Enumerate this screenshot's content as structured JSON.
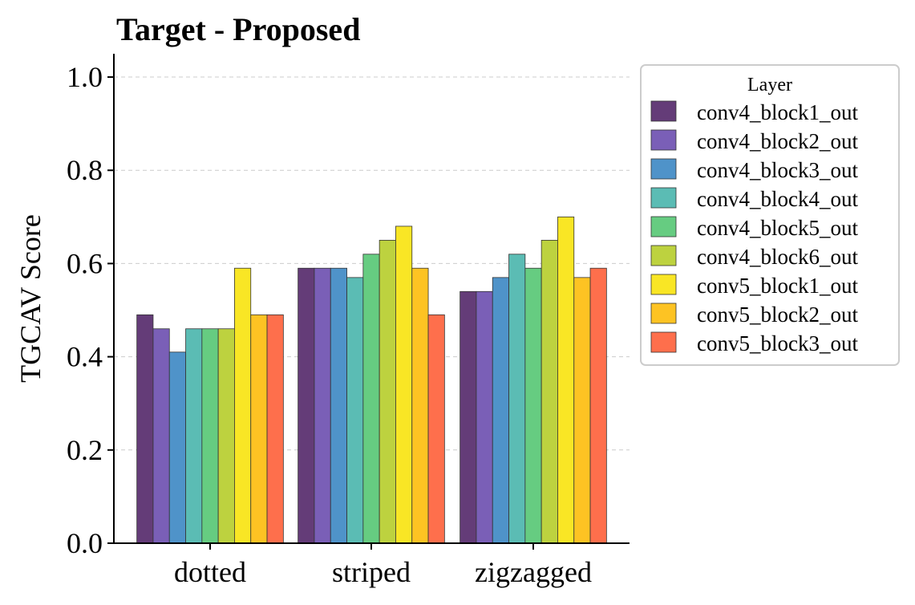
{
  "chart_data": {
    "type": "bar",
    "title": "Target - Proposed",
    "xlabel": "",
    "ylabel": "TGCAV Score",
    "ylim": [
      0,
      1.05
    ],
    "yticks": [
      0.0,
      0.2,
      0.4,
      0.6,
      0.8,
      1.0
    ],
    "ytick_labels": [
      "0.0",
      "0.2",
      "0.4",
      "0.6",
      "0.8",
      "1.0"
    ],
    "grid": true,
    "categories": [
      "dotted",
      "striped",
      "zigzagged"
    ],
    "legend": {
      "title": "Layer",
      "placement": "outside-right-top"
    },
    "series": [
      {
        "name": "conv4_block1_out",
        "color": "#643c78",
        "values": [
          0.49,
          0.59,
          0.54
        ]
      },
      {
        "name": "conv4_block2_out",
        "color": "#7a5fb7",
        "values": [
          0.46,
          0.59,
          0.54
        ]
      },
      {
        "name": "conv4_block3_out",
        "color": "#4f93c9",
        "values": [
          0.41,
          0.59,
          0.57
        ]
      },
      {
        "name": "conv4_block4_out",
        "color": "#5bbcb4",
        "values": [
          0.46,
          0.57,
          0.62
        ]
      },
      {
        "name": "conv4_block5_out",
        "color": "#66cc81",
        "values": [
          0.46,
          0.62,
          0.59
        ]
      },
      {
        "name": "conv4_block6_out",
        "color": "#bdd23f",
        "values": [
          0.46,
          0.65,
          0.65
        ]
      },
      {
        "name": "conv5_block1_out",
        "color": "#f9e625",
        "values": [
          0.59,
          0.68,
          0.7
        ]
      },
      {
        "name": "conv5_block2_out",
        "color": "#fdc323",
        "values": [
          0.49,
          0.59,
          0.57
        ]
      },
      {
        "name": "conv5_block3_out",
        "color": "#fe6f4c",
        "values": [
          0.49,
          0.49,
          0.59
        ]
      }
    ]
  }
}
